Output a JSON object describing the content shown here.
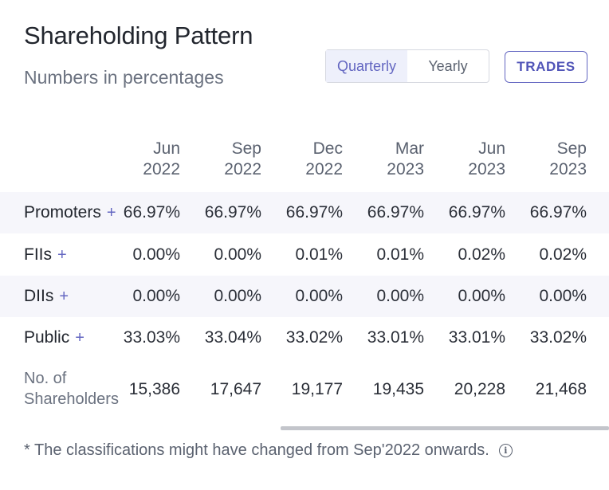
{
  "header": {
    "title": "Shareholding Pattern",
    "subtitle": "Numbers in percentages"
  },
  "toggle": {
    "options": [
      "Quarterly",
      "Yearly"
    ],
    "selected": "Quarterly"
  },
  "trades_button": {
    "label": "TRADES"
  },
  "table": {
    "columns": [
      {
        "month": "Jun",
        "year": "2022"
      },
      {
        "month": "Sep",
        "year": "2022"
      },
      {
        "month": "Dec",
        "year": "2022"
      },
      {
        "month": "Mar",
        "year": "2023"
      },
      {
        "month": "Jun",
        "year": "2023"
      },
      {
        "month": "Sep",
        "year": "2023"
      }
    ],
    "rows": [
      {
        "label": "Promoters",
        "plus": "+",
        "values": [
          "66.97%",
          "66.97%",
          "66.97%",
          "66.97%",
          "66.97%",
          "66.97%"
        ]
      },
      {
        "label": "FIIs",
        "plus": "+",
        "values": [
          "0.00%",
          "0.00%",
          "0.01%",
          "0.01%",
          "0.02%",
          "0.02%"
        ]
      },
      {
        "label": "DIIs",
        "plus": "+",
        "values": [
          "0.00%",
          "0.00%",
          "0.00%",
          "0.00%",
          "0.00%",
          "0.00%"
        ]
      },
      {
        "label": "Public",
        "plus": "+",
        "values": [
          "33.03%",
          "33.04%",
          "33.02%",
          "33.01%",
          "33.01%",
          "33.02%"
        ]
      }
    ],
    "shareholders": {
      "label_line1": "No. of",
      "label_line2": "Shareholders",
      "values": [
        "15,386",
        "17,647",
        "19,177",
        "19,435",
        "20,228",
        "21,468"
      ]
    }
  },
  "footnote": {
    "text": "* The classifications might have changed from Sep'2022 onwards.",
    "icon": "info-icon"
  }
}
